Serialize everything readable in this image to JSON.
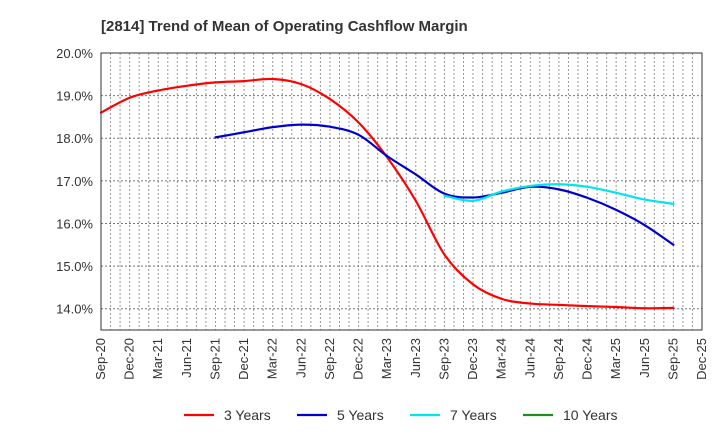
{
  "chart_data": {
    "type": "line",
    "title": "[2814]  Trend of Mean of Operating Cashflow Margin",
    "xlabel": "",
    "ylabel": "",
    "ylim": [
      13.5,
      20.0
    ],
    "yticks": [
      14.0,
      15.0,
      16.0,
      17.0,
      18.0,
      19.0,
      20.0
    ],
    "ytick_labels": [
      "14.0%",
      "15.0%",
      "16.0%",
      "17.0%",
      "18.0%",
      "19.0%",
      "20.0%"
    ],
    "grid": true,
    "legend_position": "bottom",
    "categories": [
      "Sep-20",
      "Dec-20",
      "Mar-21",
      "Jun-21",
      "Sep-21",
      "Dec-21",
      "Mar-22",
      "Jun-22",
      "Sep-22",
      "Dec-22",
      "Mar-23",
      "Jun-23",
      "Sep-23",
      "Dec-23",
      "Mar-24",
      "Jun-24",
      "Sep-24",
      "Dec-24",
      "Mar-25",
      "Jun-25",
      "Sep-25",
      "Dec-25"
    ],
    "series": [
      {
        "name": "3 Years",
        "color": "#ff0000",
        "values": [
          18.6,
          18.95,
          19.12,
          19.23,
          19.31,
          19.34,
          19.39,
          19.27,
          18.92,
          18.37,
          17.55,
          16.53,
          15.27,
          14.57,
          14.23,
          14.12,
          14.09,
          14.06,
          14.04,
          14.01,
          14.02,
          null
        ]
      },
      {
        "name": "5 Years",
        "color": "#0000cc",
        "values": [
          null,
          null,
          null,
          null,
          18.02,
          18.14,
          18.26,
          18.32,
          18.27,
          18.08,
          17.58,
          17.15,
          16.7,
          16.61,
          16.72,
          16.86,
          16.8,
          16.6,
          16.32,
          15.96,
          15.5,
          null
        ]
      },
      {
        "name": "7 Years",
        "color": "#00e5ee",
        "values": [
          null,
          null,
          null,
          null,
          null,
          null,
          null,
          null,
          null,
          null,
          null,
          null,
          16.65,
          16.53,
          16.75,
          16.88,
          16.92,
          16.86,
          16.72,
          16.56,
          16.46,
          null
        ]
      },
      {
        "name": "10 Years",
        "color": "#228b22",
        "values": [
          null,
          null,
          null,
          null,
          null,
          null,
          null,
          null,
          null,
          null,
          null,
          null,
          null,
          null,
          null,
          null,
          null,
          null,
          null,
          null,
          null,
          null
        ]
      }
    ]
  }
}
